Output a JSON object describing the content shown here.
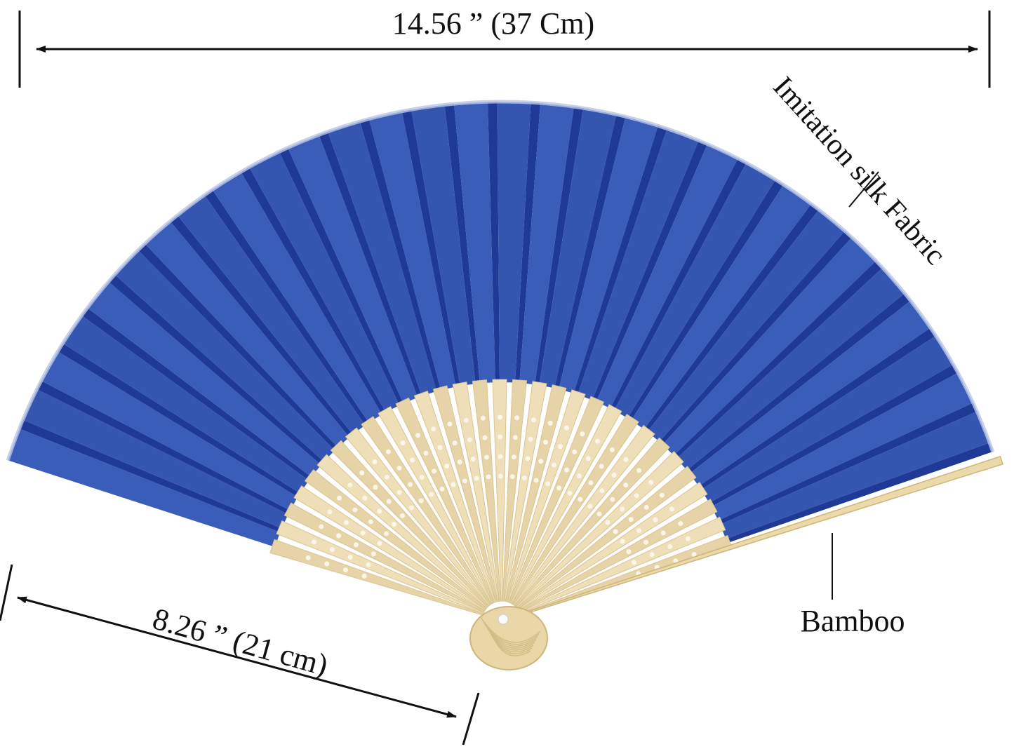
{
  "annotations": {
    "width": "14.56 ” (37 Cm)",
    "material_fabric": "Imitation silk Fabric",
    "length": "8.26 ” (21 cm)",
    "material_frame": "Bamboo"
  }
}
